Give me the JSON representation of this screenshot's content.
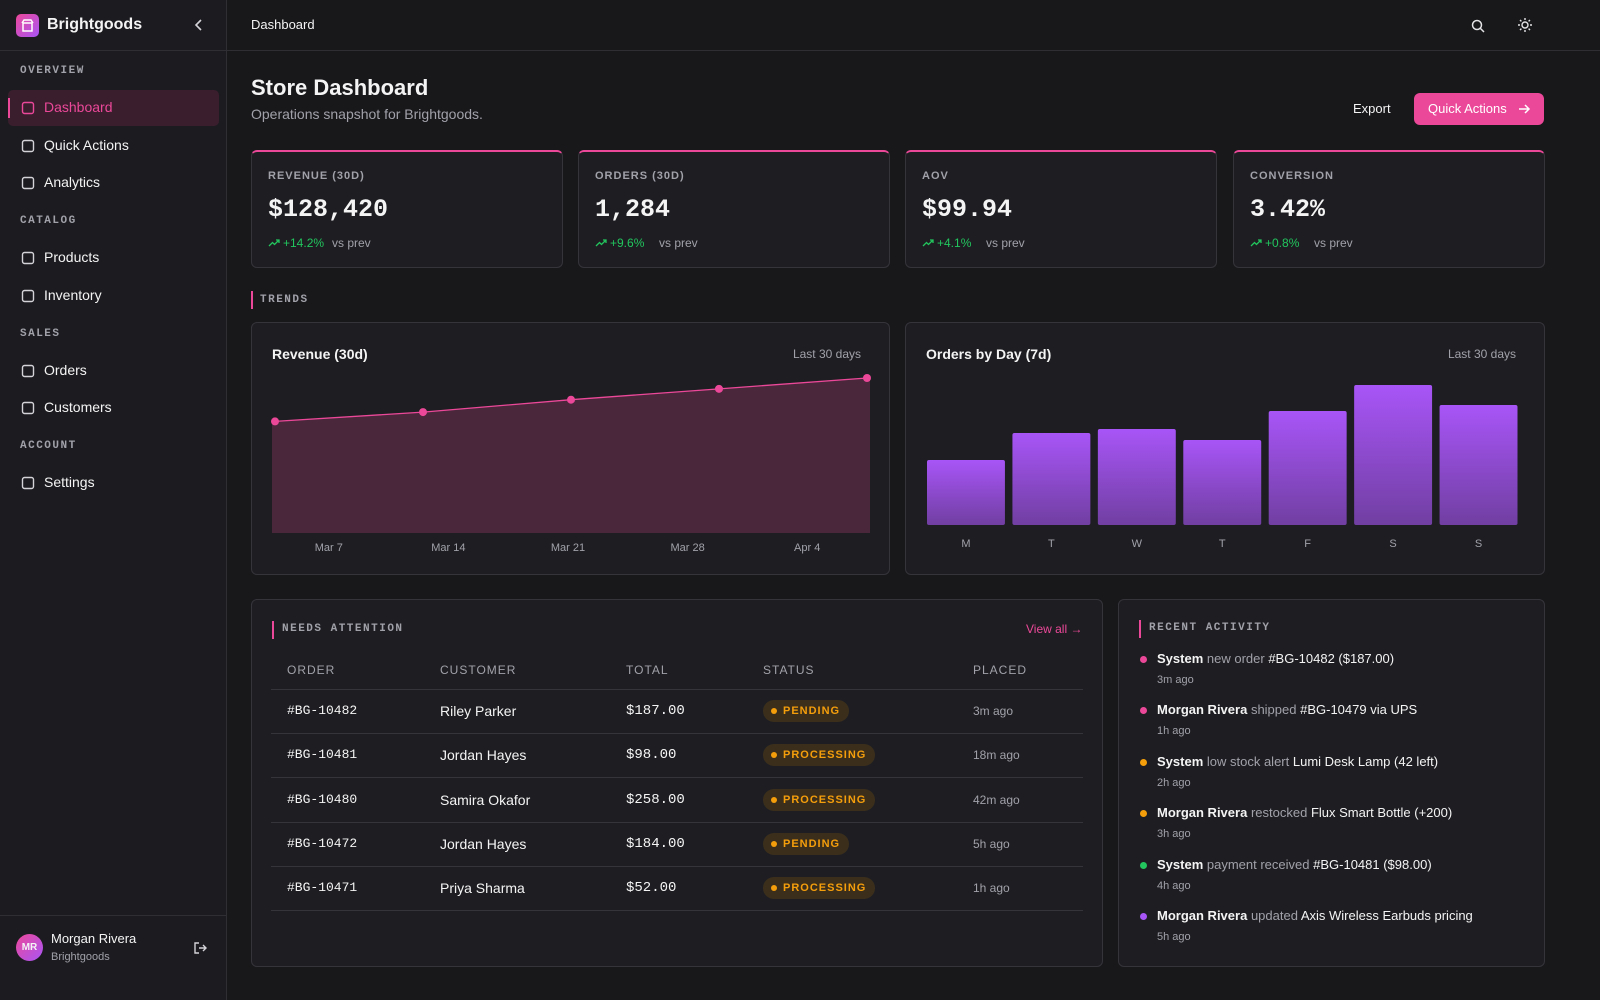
{
  "brand": "Brightgoods",
  "nav": [
    {
      "section": "OVERVIEW",
      "items": [
        "Dashboard",
        "Quick Actions",
        "Analytics"
      ]
    },
    {
      "section": "CATALOG",
      "items": [
        "Products",
        "Inventory"
      ]
    },
    {
      "section": "SALES",
      "items": [
        "Orders",
        "Customers"
      ]
    },
    {
      "section": "ACCOUNT",
      "items": [
        "Settings"
      ]
    }
  ],
  "user": {
    "initials": "MR",
    "name": "Morgan Rivera",
    "org": "Brightgoods"
  },
  "breadcrumb": "Dashboard",
  "header": {
    "title": "Store Dashboard",
    "subtitle": "Operations snapshot for Brightgoods.",
    "export": "Export",
    "quick_actions": "Quick Actions"
  },
  "kpis": [
    {
      "label": "REVENUE (30D)",
      "value": "$128,420",
      "delta": "+14.2%",
      "note": "vs prev"
    },
    {
      "label": "ORDERS (30D)",
      "value": "1,284",
      "delta": "+9.6%",
      "note": "vs prev"
    },
    {
      "label": "AOV",
      "value": "$99.94",
      "delta": "+4.1%",
      "note": "vs prev"
    },
    {
      "label": "CONVERSION",
      "value": "3.42%",
      "delta": "+0.8%",
      "note": "vs prev"
    }
  ],
  "trends": "TRENDS",
  "chart_data": [
    {
      "type": "line",
      "title": "Revenue (30d)",
      "range": "Last 30 days",
      "categories": [
        "Mar 7",
        "Mar 14",
        "Mar 21",
        "Mar 28",
        "Apr 4"
      ],
      "values": [
        72,
        78,
        86,
        93,
        100
      ],
      "ylim": [
        0,
        100
      ],
      "color": "#ec4899"
    },
    {
      "type": "bar",
      "title": "Orders by Day (7d)",
      "range": "Last 30 days",
      "categories": [
        "M",
        "T",
        "W",
        "T",
        "F",
        "S",
        "S"
      ],
      "values": [
        65,
        92,
        96,
        85,
        114,
        140,
        120
      ],
      "ylim": [
        0,
        147
      ],
      "color": "#a855f7"
    }
  ],
  "attention": {
    "title": "NEEDS ATTENTION",
    "link": "View all →",
    "columns": [
      "ORDER",
      "CUSTOMER",
      "TOTAL",
      "STATUS",
      "PLACED"
    ],
    "rows": [
      [
        "#BG-10482",
        "Riley Parker",
        "$187.00",
        "PENDING",
        "3m ago"
      ],
      [
        "#BG-10481",
        "Jordan Hayes",
        "$98.00",
        "PROCESSING",
        "18m ago"
      ],
      [
        "#BG-10480",
        "Samira Okafor",
        "$258.00",
        "PROCESSING",
        "42m ago"
      ],
      [
        "#BG-10472",
        "Jordan Hayes",
        "$184.00",
        "PENDING",
        "5h ago"
      ],
      [
        "#BG-10471",
        "Priya Sharma",
        "$52.00",
        "PROCESSING",
        "1h ago"
      ]
    ]
  },
  "activity": {
    "title": "RECENT ACTIVITY",
    "items": [
      {
        "actor": "System",
        "action": "new order",
        "object": "#BG-10482 ($187.00)",
        "time": "3m ago",
        "color": "#ec4899"
      },
      {
        "actor": "Morgan Rivera",
        "action": "shipped",
        "object": "#BG-10479 via UPS",
        "time": "1h ago",
        "color": "#ec4899"
      },
      {
        "actor": "System",
        "action": "low stock alert",
        "object": "Lumi Desk Lamp (42 left)",
        "time": "2h ago",
        "color": "#f59e0b"
      },
      {
        "actor": "Morgan Rivera",
        "action": "restocked",
        "object": "Flux Smart Bottle (+200)",
        "time": "3h ago",
        "color": "#f59e0b"
      },
      {
        "actor": "System",
        "action": "payment received",
        "object": "#BG-10481 ($98.00)",
        "time": "4h ago",
        "color": "#22c55e"
      },
      {
        "actor": "Morgan Rivera",
        "action": "updated",
        "object": "Axis Wireless Earbuds pricing",
        "time": "5h ago",
        "color": "#a855f7"
      }
    ]
  }
}
